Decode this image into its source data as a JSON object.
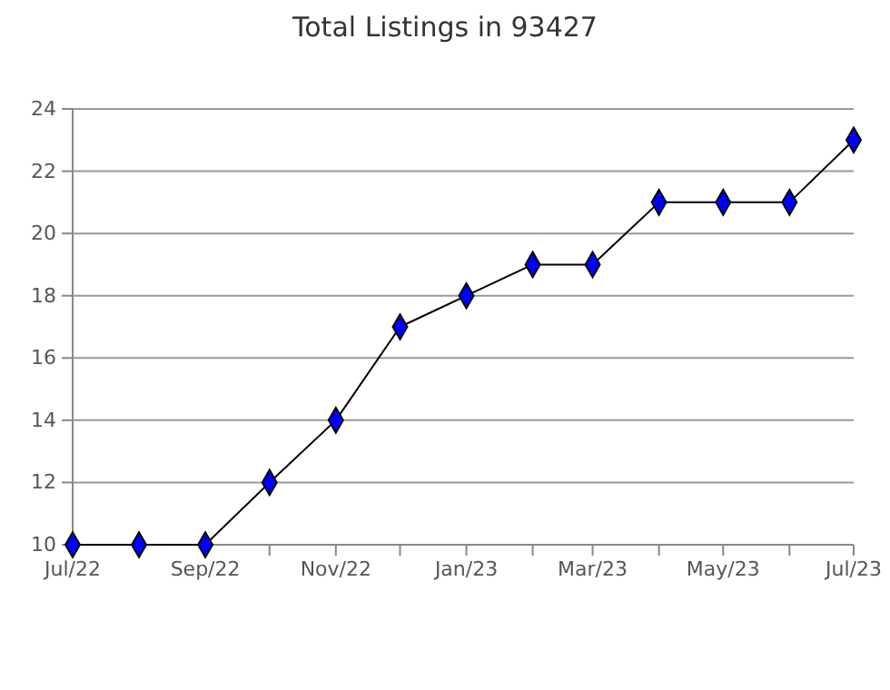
{
  "chart_data": {
    "type": "line",
    "title": "Total Listings in 93427",
    "x": [
      "2022-07",
      "2022-08",
      "2022-09",
      "2022-10",
      "2022-11",
      "2022-12",
      "2023-01",
      "2023-02",
      "2023-03",
      "2023-04",
      "2023-05",
      "2023-06",
      "2023-07"
    ],
    "series": [
      {
        "color": "#0000ff",
        "values": [
          10,
          10,
          10,
          12,
          14,
          17,
          18,
          19,
          19,
          21,
          21,
          21,
          23
        ]
      }
    ],
    "xlim": [
      "2022-07",
      "2023-07"
    ],
    "xticks": [
      {
        "value": "2022-07",
        "label": "Jul/22"
      },
      {
        "value": "2022-08",
        "label": null
      },
      {
        "value": "2022-09",
        "label": "Sep/22"
      },
      {
        "value": "2022-10",
        "label": null
      },
      {
        "value": "2022-11",
        "label": "Nov/22"
      },
      {
        "value": "2022-12",
        "label": null
      },
      {
        "value": "2023-01",
        "label": "Jan/23"
      },
      {
        "value": "2023-02",
        "label": null
      },
      {
        "value": "2023-03",
        "label": "Mar/23"
      },
      {
        "value": "2023-04",
        "label": null
      },
      {
        "value": "2023-05",
        "label": "May/23"
      },
      {
        "value": "2023-06",
        "label": null
      },
      {
        "value": "2023-07",
        "label": "Jul/23"
      }
    ],
    "ylim": [
      10,
      24
    ],
    "yticks": [
      10,
      12,
      14,
      16,
      18,
      20,
      22,
      24
    ],
    "grid": "y",
    "marker": "diamond",
    "line_style": "solid"
  }
}
